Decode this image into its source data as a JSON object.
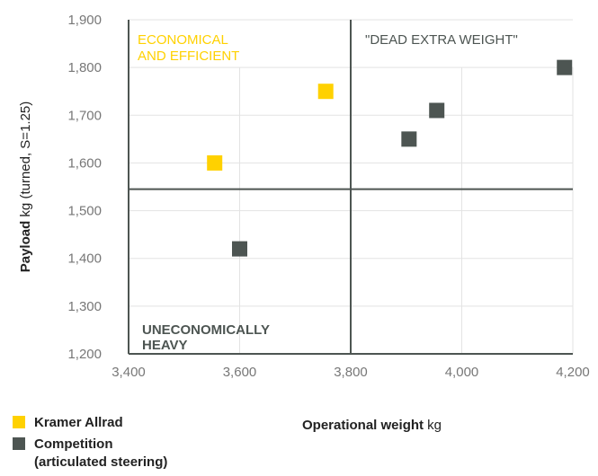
{
  "chart_data": {
    "type": "scatter",
    "xlabel_bold": "Operational weight",
    "xlabel_unit": " kg",
    "ylabel_bold": "Payload",
    "ylabel_unit": " kg (turned, S=1.25)",
    "xlim": [
      3400,
      4200
    ],
    "ylim": [
      1200,
      1900
    ],
    "xticks": [
      "3,400",
      "3,600",
      "3,800",
      "4,000",
      "4,200"
    ],
    "xtick_values": [
      3400,
      3600,
      3800,
      4000,
      4200
    ],
    "yticks": [
      "1,200",
      "1,300",
      "1,400",
      "1,500",
      "1,600",
      "1,700",
      "1,800",
      "1,900"
    ],
    "ytick_values": [
      1200,
      1300,
      1400,
      1500,
      1600,
      1700,
      1800,
      1900
    ],
    "divider_x": 3800,
    "divider_y": 1545,
    "grid": true,
    "quadrant_labels": {
      "top_left": [
        "ECONOMICAL",
        "AND EFFICIENT"
      ],
      "top_right": [
        "\"DEAD EXTRA WEIGHT\""
      ],
      "bottom_left": [
        "UNECONOMICALLY",
        "HEAVY"
      ]
    },
    "series": [
      {
        "name": "Kramer Allrad",
        "color": "#FFD100",
        "points": [
          [
            3555,
            1600
          ],
          [
            3755,
            1750
          ]
        ]
      },
      {
        "name": "Competition (articulated steering)",
        "color": "#4D5552",
        "points": [
          [
            3600,
            1420
          ],
          [
            3905,
            1650
          ],
          [
            3955,
            1710
          ],
          [
            4185,
            1800
          ]
        ]
      }
    ]
  },
  "legend": {
    "items": [
      {
        "label": "Kramer Allrad",
        "color": "#FFD100"
      },
      {
        "label": "Competition",
        "label2": "(articulated steering)",
        "color": "#4D5552"
      }
    ]
  }
}
